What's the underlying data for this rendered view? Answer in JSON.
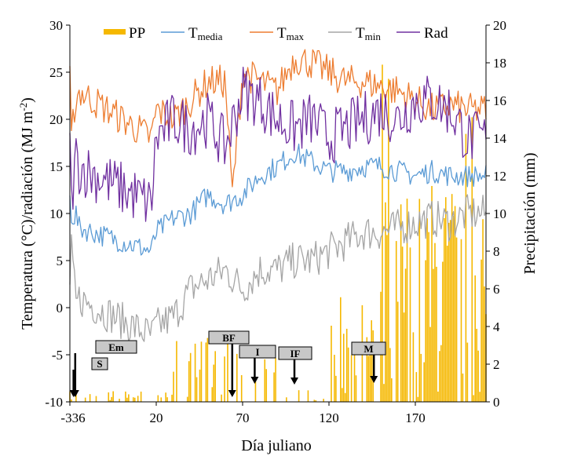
{
  "chart_data": {
    "type": "line",
    "xlabel": "Día juliano",
    "ylabel_left": "Temperatura (°C)/radiación (MJ m",
    "ylabel_left_sup": "-2",
    "ylabel_left_end": ")",
    "ylabel_right": "Precipitación (mm)",
    "x_ticks": [
      "-336",
      "20",
      "70",
      "120",
      "170"
    ],
    "y_left_ticks": [
      "-10",
      "-5",
      "0",
      "5",
      "10",
      "15",
      "20",
      "25",
      "30"
    ],
    "y_right_ticks": [
      "0",
      "2",
      "4",
      "6",
      "8",
      "10",
      "12",
      "14",
      "16",
      "18",
      "20"
    ],
    "ylim_left": [
      -10,
      30
    ],
    "ylim_right": [
      0,
      20
    ],
    "legend": {
      "placement": "top",
      "entries": [
        {
          "key": "pp",
          "label": "PP",
          "sub": ""
        },
        {
          "key": "tmedia",
          "label": "T",
          "sub": "media"
        },
        {
          "key": "tmax",
          "label": "T",
          "sub": "max"
        },
        {
          "key": "tmin",
          "label": "T",
          "sub": "min"
        },
        {
          "key": "rad",
          "label": "Rad",
          "sub": ""
        }
      ]
    },
    "colors": {
      "pp": "#f5b800",
      "tmedia": "#5b9bd5",
      "tmax": "#ed7d31",
      "tmin": "#a5a5a5",
      "rad": "#7030a0"
    },
    "stages": [
      {
        "label": "S",
        "day": -321
      },
      {
        "label": "Em",
        "day": -314
      },
      {
        "label": "BF",
        "day": 64
      },
      {
        "label": "I",
        "day": 77
      },
      {
        "label": "IF",
        "day": 100
      },
      {
        "label": "M",
        "day": 146
      }
    ],
    "series_samples": {
      "tmax": {
        "x": [
          -336,
          -330,
          -320,
          -310,
          -300,
          0,
          20,
          30,
          40,
          50,
          60,
          64,
          70,
          80,
          90,
          100,
          110,
          120,
          130,
          140,
          150,
          160,
          170,
          180,
          190,
          200
        ],
        "y": [
          24.5,
          17,
          21,
          22,
          23,
          18,
          21,
          20,
          22,
          24,
          24,
          12,
          25,
          24,
          23,
          26.5,
          26,
          25,
          24,
          24,
          23.5,
          23,
          22,
          21,
          21.5,
          21
        ]
      },
      "tmedia": {
        "x": [
          -336,
          -330,
          -320,
          -310,
          -300,
          0,
          20,
          30,
          40,
          50,
          60,
          70,
          80,
          90,
          100,
          110,
          120,
          130,
          140,
          150,
          160,
          170,
          180,
          190,
          200
        ],
        "y": [
          11.5,
          10,
          9.5,
          10,
          8.5,
          6,
          8,
          9.5,
          10,
          12,
          11,
          12,
          14,
          15,
          16.5,
          15.5,
          14.5,
          14.5,
          15,
          15,
          14.5,
          14,
          14.5,
          14,
          14
        ]
      },
      "tmin": {
        "x": [
          -336,
          -330,
          -320,
          -310,
          -300,
          0,
          20,
          30,
          40,
          50,
          60,
          70,
          80,
          90,
          100,
          110,
          120,
          130,
          140,
          150,
          160,
          170,
          180,
          190,
          200
        ],
        "y": [
          2,
          6,
          3,
          0,
          1,
          -3,
          -2,
          -1,
          2,
          3,
          4,
          2,
          4,
          4,
          5,
          5,
          6,
          7,
          8,
          8,
          8.5,
          9,
          9.5,
          9,
          10
        ]
      },
      "rad": {
        "x": [
          -336,
          -330,
          -320,
          -310,
          -300,
          0,
          20,
          30,
          40,
          50,
          60,
          70,
          80,
          90,
          100,
          110,
          120,
          130,
          140,
          150,
          160,
          170,
          180,
          190,
          200
        ],
        "y": [
          17,
          11,
          14,
          16,
          15,
          11,
          18,
          20,
          19,
          20,
          17,
          23,
          22,
          20,
          19,
          20,
          18,
          19,
          20,
          21,
          20,
          22,
          22,
          21,
          18
        ]
      }
    }
  }
}
